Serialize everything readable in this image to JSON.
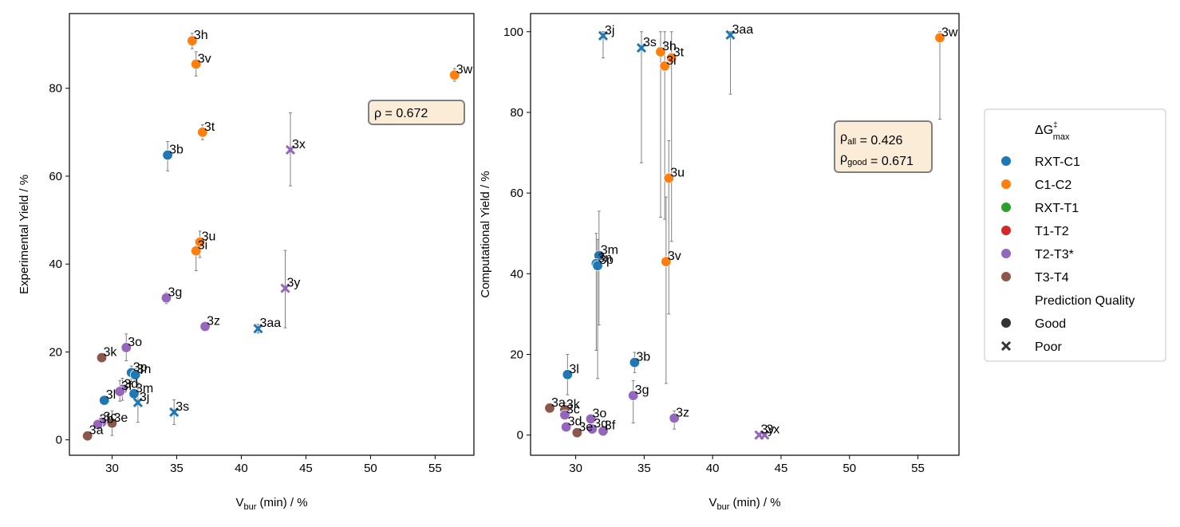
{
  "colors": {
    "RXT-C1": "#1f77b4",
    "C1-C2": "#ff7f0e",
    "RXT-T1": "#2ca02c",
    "T1-T2": "#d62728",
    "T2-T3*": "#9467bd",
    "T3-T4": "#8c564b",
    "quality_marker": "#333333",
    "errorbar": "#808080",
    "annotation_bg": "#fbecd8",
    "annotation_border": "#808080"
  },
  "legend": {
    "title_main": "ΔG",
    "title_sup": "‡",
    "title_sub": "max",
    "group_entries": [
      "RXT-C1",
      "C1-C2",
      "RXT-T1",
      "T1-T2",
      "T2-T3*",
      "T3-T4"
    ],
    "quality_title": "Prediction Quality",
    "quality_entries": [
      {
        "label": "Good",
        "marker": "circle"
      },
      {
        "label": "Poor",
        "marker": "x"
      }
    ]
  },
  "chart_data": [
    {
      "type": "scatter",
      "xlabel_main": "V",
      "xlabel_sub": "bur",
      "xlabel_rest": " (min) / %",
      "ylabel": "Experimental Yield / %",
      "xlim": [
        26.7,
        58.0
      ],
      "ylim": [
        -3.5,
        97.0
      ],
      "xticks": [
        30,
        35,
        40,
        45,
        50,
        55
      ],
      "yticks": [
        0,
        20,
        40,
        60,
        80
      ],
      "grid": false,
      "annotation": [
        [
          {
            "t": "ρ = 0.672",
            "sub": ""
          }
        ]
      ],
      "points": [
        {
          "label": "3h",
          "x": 36.2,
          "y": 90.8,
          "group": "C1-C2",
          "quality": "Good",
          "err": [
            89.0,
            92.5
          ]
        },
        {
          "label": "3v",
          "x": 36.5,
          "y": 85.5,
          "group": "C1-C2",
          "quality": "Good",
          "err": [
            82.8,
            88.3
          ]
        },
        {
          "label": "3w",
          "x": 56.5,
          "y": 83.0,
          "group": "C1-C2",
          "quality": "Good",
          "err": [
            81.6,
            84.5
          ]
        },
        {
          "label": "3t",
          "x": 37.0,
          "y": 70.0,
          "group": "C1-C2",
          "quality": "Good",
          "err": [
            68.3,
            71.7
          ]
        },
        {
          "label": "3b",
          "x": 34.3,
          "y": 64.8,
          "group": "RXT-C1",
          "quality": "Good",
          "err": [
            61.2,
            67.9
          ]
        },
        {
          "label": "3x",
          "x": 43.8,
          "y": 66.0,
          "group": "T2-T3*",
          "quality": "Poor",
          "err": [
            57.8,
            74.4
          ]
        },
        {
          "label": "3u",
          "x": 36.8,
          "y": 45.0,
          "group": "C1-C2",
          "quality": "Good",
          "err": [
            41.5,
            47.5
          ]
        },
        {
          "label": "3i",
          "x": 36.5,
          "y": 43.0,
          "group": "C1-C2",
          "quality": "Good",
          "err": [
            38.5,
            45.5
          ]
        },
        {
          "label": "3y",
          "x": 43.4,
          "y": 34.5,
          "group": "T2-T3*",
          "quality": "Poor",
          "err": [
            25.5,
            43.1
          ]
        },
        {
          "label": "3g",
          "x": 34.2,
          "y": 32.3,
          "group": "T2-T3*",
          "quality": "Good",
          "err": [
            31.0,
            33.5
          ]
        },
        {
          "label": "3z",
          "x": 37.2,
          "y": 25.8,
          "group": "T2-T3*",
          "quality": "Good",
          "err": [
            24.8,
            26.8
          ]
        },
        {
          "label": "3aa",
          "x": 41.3,
          "y": 25.3,
          "group": "RXT-C1",
          "quality": "Poor",
          "err": [
            24.3,
            26.3
          ]
        },
        {
          "label": "3o",
          "x": 31.1,
          "y": 21.0,
          "group": "T2-T3*",
          "quality": "Good",
          "err": [
            18.0,
            24.1
          ]
        },
        {
          "label": "3k",
          "x": 29.2,
          "y": 18.7,
          "group": "T3-T4",
          "quality": "Good",
          "err": [
            17.8,
            19.6
          ]
        },
        {
          "label": "3p",
          "x": 31.5,
          "y": 15.3,
          "group": "RXT-C1",
          "quality": "Good",
          "err": [
            13.8,
            16.8
          ]
        },
        {
          "label": "3n",
          "x": 31.8,
          "y": 14.8,
          "group": "RXT-C1",
          "quality": "Good",
          "err": [
            13.5,
            16.2
          ]
        },
        {
          "label": "3d",
          "x": 30.8,
          "y": 11.5,
          "group": "T2-T3*",
          "quality": "Good",
          "err": [
            9.0,
            14.0
          ]
        },
        {
          "label": "3f",
          "x": 30.6,
          "y": 11.0,
          "group": "T2-T3*",
          "quality": "Good",
          "err": [
            8.8,
            13.5
          ]
        },
        {
          "label": "3m",
          "x": 31.7,
          "y": 10.5,
          "group": "RXT-C1",
          "quality": "Good",
          "err": [
            9.5,
            11.5
          ]
        },
        {
          "label": "3j",
          "x": 32.0,
          "y": 8.5,
          "group": "RXT-C1",
          "quality": "Poor",
          "err": [
            4.0,
            13.0
          ]
        },
        {
          "label": "3l",
          "x": 29.4,
          "y": 9.0,
          "group": "RXT-C1",
          "quality": "Good",
          "err": [
            8.0,
            10.0
          ]
        },
        {
          "label": "3s",
          "x": 34.8,
          "y": 6.3,
          "group": "RXT-C1",
          "quality": "Poor",
          "err": [
            3.5,
            9.1
          ]
        },
        {
          "label": "3c",
          "x": 29.2,
          "y": 4.0,
          "group": "T2-T3*",
          "quality": "Good",
          "err": [
            3.0,
            5.0
          ]
        },
        {
          "label": "3b",
          "x": 28.9,
          "y": 3.5,
          "group": "T2-T3*",
          "quality": "Good",
          "err": [
            2.5,
            4.5
          ]
        },
        {
          "label": "3e",
          "x": 30.0,
          "y": 3.8,
          "group": "T3-T4",
          "quality": "Good",
          "err": [
            1.0,
            6.6
          ]
        },
        {
          "label": "3a",
          "x": 28.1,
          "y": 0.9,
          "group": "T3-T4",
          "quality": "Good",
          "err": [
            0.3,
            1.5
          ]
        }
      ]
    },
    {
      "type": "scatter",
      "xlabel_main": "V",
      "xlabel_sub": "bur",
      "xlabel_rest": " (min) / %",
      "ylabel": "Computational Yield / %",
      "xlim": [
        26.7,
        58.0
      ],
      "ylim": [
        -5.0,
        104.5
      ],
      "xticks": [
        30,
        35,
        40,
        45,
        50,
        55
      ],
      "yticks": [
        0,
        20,
        40,
        60,
        80,
        100
      ],
      "grid": false,
      "annotation": [
        [
          {
            "t": "ρ",
            "sub": "all"
          },
          {
            "t": " = 0.426",
            "sub": ""
          }
        ],
        [
          {
            "t": "ρ",
            "sub": "good"
          },
          {
            "t": " = 0.671",
            "sub": ""
          }
        ]
      ],
      "points": [
        {
          "label": "3j",
          "x": 32.0,
          "y": 99.0,
          "group": "RXT-C1",
          "quality": "Poor",
          "err": [
            93.5,
            100.0
          ]
        },
        {
          "label": "3aa",
          "x": 41.3,
          "y": 99.2,
          "group": "RXT-C1",
          "quality": "Poor",
          "err": [
            84.5,
            100.0
          ]
        },
        {
          "label": "3w",
          "x": 56.6,
          "y": 98.5,
          "group": "C1-C2",
          "quality": "Good",
          "err": [
            78.3,
            100.0
          ]
        },
        {
          "label": "3s",
          "x": 34.8,
          "y": 96.0,
          "group": "RXT-C1",
          "quality": "Poor",
          "err": [
            67.5,
            100.0
          ]
        },
        {
          "label": "3h",
          "x": 36.2,
          "y": 95.0,
          "group": "C1-C2",
          "quality": "Good",
          "err": [
            54.0,
            100.0
          ]
        },
        {
          "label": "3t",
          "x": 37.0,
          "y": 93.5,
          "group": "C1-C2",
          "quality": "Good",
          "err": [
            48.0,
            100.0
          ]
        },
        {
          "label": "3i",
          "x": 36.5,
          "y": 91.5,
          "group": "C1-C2",
          "quality": "Good",
          "err": [
            53.5,
            100.0
          ]
        },
        {
          "label": "3u",
          "x": 36.8,
          "y": 63.7,
          "group": "C1-C2",
          "quality": "Good",
          "err": [
            30.0,
            73.0
          ]
        },
        {
          "label": "3v",
          "x": 36.6,
          "y": 43.0,
          "group": "C1-C2",
          "quality": "Good",
          "err": [
            12.8,
            59.0
          ]
        },
        {
          "label": "3m",
          "x": 31.7,
          "y": 44.5,
          "group": "RXT-C1",
          "quality": "Good",
          "err": [
            27.3,
            55.5
          ]
        },
        {
          "label": "3n",
          "x": 31.5,
          "y": 42.5,
          "group": "RXT-C1",
          "quality": "Good",
          "err": [
            21.0,
            50.0
          ]
        },
        {
          "label": "3p",
          "x": 31.6,
          "y": 42.0,
          "group": "RXT-C1",
          "quality": "Good",
          "err": [
            14.0,
            48.5
          ]
        },
        {
          "label": "3b",
          "x": 34.3,
          "y": 18.0,
          "group": "RXT-C1",
          "quality": "Good",
          "err": [
            15.5,
            20.5
          ]
        },
        {
          "label": "3l",
          "x": 29.4,
          "y": 15.0,
          "group": "RXT-C1",
          "quality": "Good",
          "err": [
            10.0,
            20.0
          ]
        },
        {
          "label": "3g",
          "x": 34.2,
          "y": 9.8,
          "group": "T2-T3*",
          "quality": "Good",
          "err": [
            3.0,
            13.5
          ]
        },
        {
          "label": "3z",
          "x": 37.2,
          "y": 4.2,
          "group": "T2-T3*",
          "quality": "Good",
          "err": [
            1.5,
            6.0
          ]
        },
        {
          "label": "3a",
          "x": 28.1,
          "y": 6.7,
          "group": "T3-T4",
          "quality": "Good",
          "err": [
            5.8,
            7.6
          ]
        },
        {
          "label": "3k",
          "x": 29.2,
          "y": 6.3,
          "group": "T3-T4",
          "quality": "Good",
          "err": [
            4.5,
            8.0
          ]
        },
        {
          "label": "3c",
          "x": 29.2,
          "y": 5.0,
          "group": "T2-T3*",
          "quality": "Good",
          "err": [
            4.0,
            6.0
          ]
        },
        {
          "label": "3d",
          "x": 29.3,
          "y": 2.0,
          "group": "T2-T3*",
          "quality": "Good",
          "err": [
            1.0,
            3.0
          ]
        },
        {
          "label": "3o",
          "x": 31.1,
          "y": 4.0,
          "group": "T2-T3*",
          "quality": "Good",
          "err": [
            3.0,
            5.0
          ]
        },
        {
          "label": "3e",
          "x": 30.1,
          "y": 0.6,
          "group": "T3-T4",
          "quality": "Good",
          "err": [
            0.0,
            1.2
          ]
        },
        {
          "label": "3q",
          "x": 31.2,
          "y": 1.5,
          "group": "T2-T3*",
          "quality": "Good",
          "err": [
            0.5,
            2.5
          ]
        },
        {
          "label": "3f",
          "x": 32.0,
          "y": 1.0,
          "group": "T2-T3*",
          "quality": "Good",
          "err": [
            0.2,
            1.8
          ]
        },
        {
          "label": "3y",
          "x": 43.4,
          "y": 0.0,
          "group": "T2-T3*",
          "quality": "Poor",
          "err": [
            0.0,
            0.5
          ]
        },
        {
          "label": "3x",
          "x": 43.8,
          "y": 0.0,
          "group": "T2-T3*",
          "quality": "Poor",
          "err": [
            0.0,
            0.5
          ]
        }
      ]
    }
  ]
}
